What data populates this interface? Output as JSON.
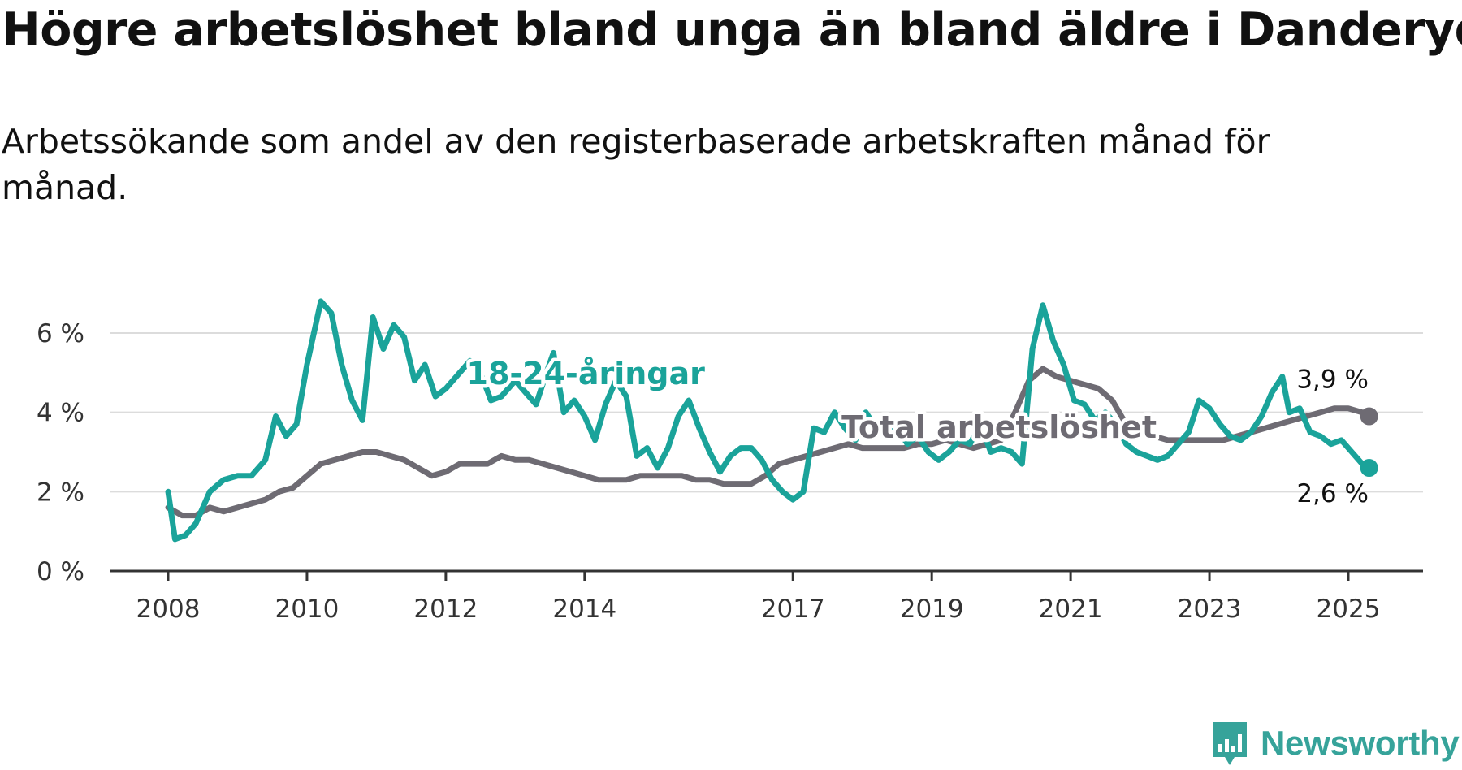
{
  "title": "Högre arbetslöshet bland unga än bland äldre i Danderyd",
  "subtitle": "Arbetssökande som andel av den registerbaserade arbetskraften månad för månad.",
  "brand": {
    "name": "Newsworthy",
    "icon": "newsworthy-logo-icon",
    "color": "#36a39a"
  },
  "chart_data": {
    "type": "line",
    "title": "Högre arbetslöshet bland unga än bland äldre i Danderyd",
    "subtitle": "Arbetssökande som andel av den registerbaserade arbetskraften månad för månad.",
    "xlabel": "",
    "ylabel": "",
    "x_unit": "year (decimal)",
    "xlim": [
      2008,
      2025.4
    ],
    "ylim": [
      0,
      7
    ],
    "x_ticks": [
      {
        "value": 2008,
        "label": "2008"
      },
      {
        "value": 2010,
        "label": "2010"
      },
      {
        "value": 2012,
        "label": "2012"
      },
      {
        "value": 2014,
        "label": "2014"
      },
      {
        "value": 2017,
        "label": "2017"
      },
      {
        "value": 2019,
        "label": "2019"
      },
      {
        "value": 2021,
        "label": "2021"
      },
      {
        "value": 2023,
        "label": "2023"
      },
      {
        "value": 2025,
        "label": "2025"
      }
    ],
    "y_ticks": [
      {
        "value": 0,
        "label": "0 %"
      },
      {
        "value": 2,
        "label": "2 %"
      },
      {
        "value": 4,
        "label": "4 %"
      },
      {
        "value": 6,
        "label": "6 %"
      }
    ],
    "grid": "horizontal",
    "legend": "inline labels",
    "series": [
      {
        "name": "Total arbetslöshet",
        "color": "#6e6b73",
        "end_label": "3,9 %",
        "points": [
          [
            2008.0,
            1.6
          ],
          [
            2008.2,
            1.4
          ],
          [
            2008.4,
            1.4
          ],
          [
            2008.6,
            1.6
          ],
          [
            2008.8,
            1.5
          ],
          [
            2009.0,
            1.6
          ],
          [
            2009.2,
            1.7
          ],
          [
            2009.4,
            1.8
          ],
          [
            2009.6,
            2.0
          ],
          [
            2009.8,
            2.1
          ],
          [
            2010.0,
            2.4
          ],
          [
            2010.2,
            2.7
          ],
          [
            2010.4,
            2.8
          ],
          [
            2010.6,
            2.9
          ],
          [
            2010.8,
            3.0
          ],
          [
            2011.0,
            3.0
          ],
          [
            2011.2,
            2.9
          ],
          [
            2011.4,
            2.8
          ],
          [
            2011.6,
            2.6
          ],
          [
            2011.8,
            2.4
          ],
          [
            2012.0,
            2.5
          ],
          [
            2012.2,
            2.7
          ],
          [
            2012.4,
            2.7
          ],
          [
            2012.6,
            2.7
          ],
          [
            2012.8,
            2.9
          ],
          [
            2013.0,
            2.8
          ],
          [
            2013.2,
            2.8
          ],
          [
            2013.4,
            2.7
          ],
          [
            2013.6,
            2.6
          ],
          [
            2013.8,
            2.5
          ],
          [
            2014.0,
            2.4
          ],
          [
            2014.2,
            2.3
          ],
          [
            2014.4,
            2.3
          ],
          [
            2014.6,
            2.3
          ],
          [
            2014.8,
            2.4
          ],
          [
            2015.0,
            2.4
          ],
          [
            2015.2,
            2.4
          ],
          [
            2015.4,
            2.4
          ],
          [
            2015.6,
            2.3
          ],
          [
            2015.8,
            2.3
          ],
          [
            2016.0,
            2.2
          ],
          [
            2016.2,
            2.2
          ],
          [
            2016.4,
            2.2
          ],
          [
            2016.6,
            2.4
          ],
          [
            2016.8,
            2.7
          ],
          [
            2017.0,
            2.8
          ],
          [
            2017.2,
            2.9
          ],
          [
            2017.4,
            3.0
          ],
          [
            2017.6,
            3.1
          ],
          [
            2017.8,
            3.2
          ],
          [
            2018.0,
            3.1
          ],
          [
            2018.2,
            3.1
          ],
          [
            2018.4,
            3.1
          ],
          [
            2018.6,
            3.1
          ],
          [
            2018.8,
            3.2
          ],
          [
            2019.0,
            3.2
          ],
          [
            2019.2,
            3.3
          ],
          [
            2019.4,
            3.2
          ],
          [
            2019.6,
            3.1
          ],
          [
            2019.8,
            3.2
          ],
          [
            2020.0,
            3.3
          ],
          [
            2020.2,
            4.0
          ],
          [
            2020.4,
            4.8
          ],
          [
            2020.6,
            5.1
          ],
          [
            2020.8,
            4.9
          ],
          [
            2021.0,
            4.8
          ],
          [
            2021.2,
            4.7
          ],
          [
            2021.4,
            4.6
          ],
          [
            2021.6,
            4.3
          ],
          [
            2021.8,
            3.7
          ],
          [
            2022.0,
            3.5
          ],
          [
            2022.2,
            3.4
          ],
          [
            2022.4,
            3.3
          ],
          [
            2022.6,
            3.3
          ],
          [
            2022.8,
            3.3
          ],
          [
            2023.0,
            3.3
          ],
          [
            2023.2,
            3.3
          ],
          [
            2023.4,
            3.4
          ],
          [
            2023.6,
            3.5
          ],
          [
            2023.8,
            3.6
          ],
          [
            2024.0,
            3.7
          ],
          [
            2024.2,
            3.8
          ],
          [
            2024.4,
            3.9
          ],
          [
            2024.6,
            4.0
          ],
          [
            2024.8,
            4.1
          ],
          [
            2025.0,
            4.1
          ],
          [
            2025.2,
            4.0
          ],
          [
            2025.3,
            3.9
          ]
        ]
      },
      {
        "name": "18-24-åringar",
        "color": "#1aa39a",
        "end_label": "2,6 %",
        "points": [
          [
            2008.0,
            2.0
          ],
          [
            2008.1,
            0.8
          ],
          [
            2008.25,
            0.9
          ],
          [
            2008.4,
            1.2
          ],
          [
            2008.6,
            2.0
          ],
          [
            2008.8,
            2.3
          ],
          [
            2009.0,
            2.4
          ],
          [
            2009.2,
            2.4
          ],
          [
            2009.4,
            2.8
          ],
          [
            2009.55,
            3.9
          ],
          [
            2009.7,
            3.4
          ],
          [
            2009.85,
            3.7
          ],
          [
            2010.0,
            5.2
          ],
          [
            2010.2,
            6.8
          ],
          [
            2010.35,
            6.5
          ],
          [
            2010.5,
            5.2
          ],
          [
            2010.65,
            4.3
          ],
          [
            2010.8,
            3.8
          ],
          [
            2010.95,
            6.4
          ],
          [
            2011.1,
            5.6
          ],
          [
            2011.25,
            6.2
          ],
          [
            2011.4,
            5.9
          ],
          [
            2011.55,
            4.8
          ],
          [
            2011.7,
            5.2
          ],
          [
            2011.85,
            4.4
          ],
          [
            2012.0,
            4.6
          ],
          [
            2012.2,
            5.0
          ],
          [
            2012.35,
            5.3
          ],
          [
            2012.5,
            5.0
          ],
          [
            2012.65,
            4.3
          ],
          [
            2012.8,
            4.4
          ],
          [
            2013.0,
            4.8
          ],
          [
            2013.15,
            4.5
          ],
          [
            2013.3,
            4.2
          ],
          [
            2013.45,
            5.0
          ],
          [
            2013.55,
            5.5
          ],
          [
            2013.7,
            4.0
          ],
          [
            2013.85,
            4.3
          ],
          [
            2014.0,
            3.9
          ],
          [
            2014.15,
            3.3
          ],
          [
            2014.3,
            4.2
          ],
          [
            2014.45,
            4.8
          ],
          [
            2014.6,
            4.4
          ],
          [
            2014.75,
            2.9
          ],
          [
            2014.9,
            3.1
          ],
          [
            2015.05,
            2.6
          ],
          [
            2015.2,
            3.1
          ],
          [
            2015.35,
            3.9
          ],
          [
            2015.5,
            4.3
          ],
          [
            2015.65,
            3.6
          ],
          [
            2015.8,
            3.0
          ],
          [
            2015.95,
            2.5
          ],
          [
            2016.1,
            2.9
          ],
          [
            2016.25,
            3.1
          ],
          [
            2016.4,
            3.1
          ],
          [
            2016.55,
            2.8
          ],
          [
            2016.7,
            2.3
          ],
          [
            2016.85,
            2.0
          ],
          [
            2017.0,
            1.8
          ],
          [
            2017.15,
            2.0
          ],
          [
            2017.3,
            3.6
          ],
          [
            2017.45,
            3.5
          ],
          [
            2017.6,
            4.0
          ],
          [
            2017.75,
            3.6
          ],
          [
            2017.9,
            3.3
          ],
          [
            2018.05,
            4.0
          ],
          [
            2018.2,
            3.6
          ],
          [
            2018.35,
            3.7
          ],
          [
            2018.5,
            3.6
          ],
          [
            2018.65,
            3.2
          ],
          [
            2018.8,
            3.4
          ],
          [
            2018.95,
            3.0
          ],
          [
            2019.1,
            2.8
          ],
          [
            2019.25,
            3.0
          ],
          [
            2019.4,
            3.3
          ],
          [
            2019.55,
            3.2
          ],
          [
            2019.7,
            3.7
          ],
          [
            2019.85,
            3.0
          ],
          [
            2020.0,
            3.1
          ],
          [
            2020.15,
            3.0
          ],
          [
            2020.3,
            2.7
          ],
          [
            2020.45,
            5.6
          ],
          [
            2020.6,
            6.7
          ],
          [
            2020.75,
            5.8
          ],
          [
            2020.9,
            5.2
          ],
          [
            2021.05,
            4.3
          ],
          [
            2021.2,
            4.2
          ],
          [
            2021.35,
            3.8
          ],
          [
            2021.5,
            4.0
          ],
          [
            2021.65,
            3.7
          ],
          [
            2021.8,
            3.2
          ],
          [
            2021.95,
            3.0
          ],
          [
            2022.1,
            2.9
          ],
          [
            2022.25,
            2.8
          ],
          [
            2022.4,
            2.9
          ],
          [
            2022.55,
            3.2
          ],
          [
            2022.7,
            3.5
          ],
          [
            2022.85,
            4.3
          ],
          [
            2023.0,
            4.1
          ],
          [
            2023.15,
            3.7
          ],
          [
            2023.3,
            3.4
          ],
          [
            2023.45,
            3.3
          ],
          [
            2023.6,
            3.5
          ],
          [
            2023.75,
            3.9
          ],
          [
            2023.9,
            4.5
          ],
          [
            2024.05,
            4.9
          ],
          [
            2024.15,
            4.0
          ],
          [
            2024.3,
            4.1
          ],
          [
            2024.45,
            3.5
          ],
          [
            2024.6,
            3.4
          ],
          [
            2024.75,
            3.2
          ],
          [
            2024.9,
            3.3
          ],
          [
            2025.05,
            3.0
          ],
          [
            2025.2,
            2.7
          ],
          [
            2025.3,
            2.6
          ]
        ]
      }
    ],
    "annotations": [
      {
        "text": "18-24-åringar",
        "series": "18-24-åringar",
        "x": 2012.3,
        "y": 5.0
      },
      {
        "text": "Total arbetslöshet",
        "series": "Total arbetslöshet",
        "x": 2017.7,
        "y": 3.65
      }
    ]
  }
}
